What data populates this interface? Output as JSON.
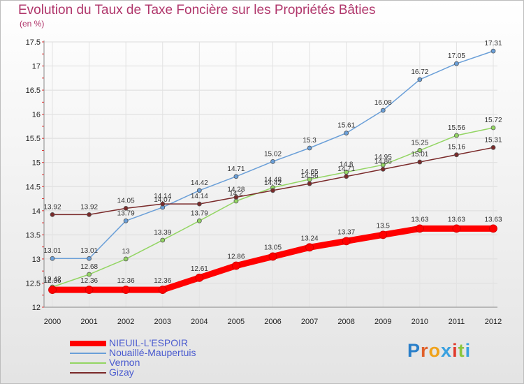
{
  "title": "Evolution du Taux de Taxe Foncière sur les Propriétés Bâties",
  "subtitle": "(en %)",
  "logo": {
    "text": "Proxiti",
    "letters": [
      {
        "ch": "P",
        "color": "#2a7fc9"
      },
      {
        "ch": "r",
        "color": "#e0602a"
      },
      {
        "ch": "o",
        "color": "#f0a21a"
      },
      {
        "ch": "x",
        "color": "#3aa1e0"
      },
      {
        "ch": "i",
        "color": "#e0392a"
      },
      {
        "ch": "t",
        "color": "#8cc63e"
      },
      {
        "ch": "i",
        "color": "#3aa1e0"
      }
    ]
  },
  "chart_data": {
    "type": "line",
    "x": [
      2000,
      2001,
      2002,
      2003,
      2004,
      2005,
      2006,
      2007,
      2008,
      2009,
      2010,
      2011,
      2012
    ],
    "ylim": [
      12,
      17.5
    ],
    "yticks": [
      12,
      12.5,
      13,
      13.5,
      14,
      14.5,
      15,
      15.5,
      16,
      16.5,
      17,
      17.5
    ],
    "grid": true,
    "legend_position": "bottom-left",
    "series": [
      {
        "name": "Nouaillé-Maupertuis",
        "color": "#6a9fd8",
        "values": [
          13.01,
          13.01,
          13.79,
          14.07,
          14.42,
          14.71,
          15.02,
          15.3,
          15.61,
          16.08,
          16.72,
          17.05,
          17.31
        ]
      },
      {
        "name": "Vernon",
        "color": "#93d563",
        "values": [
          12.42,
          12.68,
          13,
          13.39,
          13.79,
          14.2,
          14.48,
          14.65,
          14.8,
          14.95,
          15.25,
          15.56,
          15.72
        ]
      },
      {
        "name": "Gizay",
        "color": "#7a2a2a",
        "values": [
          13.92,
          13.92,
          14.05,
          14.14,
          14.14,
          14.28,
          14.42,
          14.56,
          14.71,
          14.86,
          15.01,
          15.16,
          15.31
        ]
      },
      {
        "name": "NIEUIL-L'ESPOIR",
        "color": "#ff0000",
        "values": [
          12.36,
          12.36,
          12.36,
          12.36,
          12.61,
          12.86,
          13.05,
          13.24,
          13.37,
          13.5,
          13.63,
          13.63,
          13.63
        ]
      }
    ]
  }
}
